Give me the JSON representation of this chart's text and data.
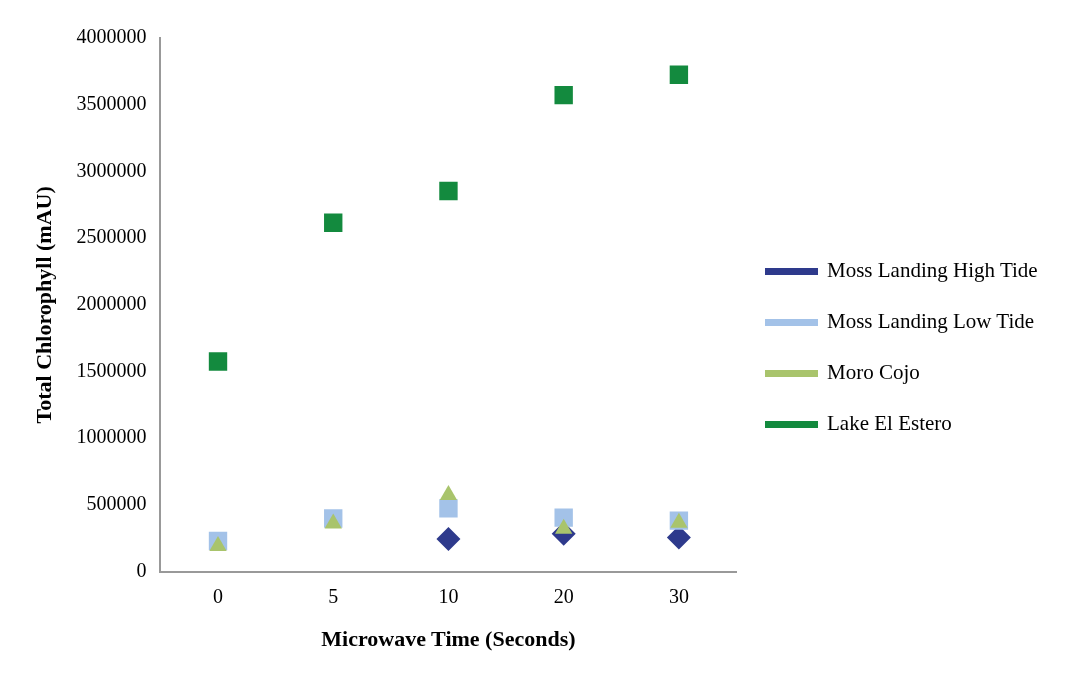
{
  "chart_data": {
    "type": "scatter",
    "xlabel": "Microwave Time (Seconds)",
    "ylabel": "Total Chlorophyll (mAU)",
    "categories": [
      "0",
      "5",
      "10",
      "20",
      "30"
    ],
    "series": [
      {
        "name": "Moss Landing High Tide",
        "color": "#2e3a8c",
        "marker": "diamond",
        "values": [
          null,
          null,
          245000,
          283000,
          256000
        ]
      },
      {
        "name": "Moss Landing Low Tide",
        "color": "#a3c2e8",
        "marker": "square",
        "values": [
          229000,
          398000,
          474000,
          405000,
          382000
        ]
      },
      {
        "name": "Moro Cojo",
        "color": "#a9c46c",
        "marker": "triangle",
        "values": [
          191000,
          360000,
          574000,
          321000,
          367000
        ]
      },
      {
        "name": "Lake El Estero",
        "color": "#138a3e",
        "marker": "square",
        "values": [
          1575000,
          2615000,
          2853000,
          3572000,
          3725000
        ]
      }
    ],
    "ylim": [
      0,
      4000000
    ],
    "yticks": [
      0,
      500000,
      1000000,
      1500000,
      2000000,
      2500000,
      3000000,
      3500000,
      4000000
    ],
    "grid": false,
    "legend": "right"
  }
}
